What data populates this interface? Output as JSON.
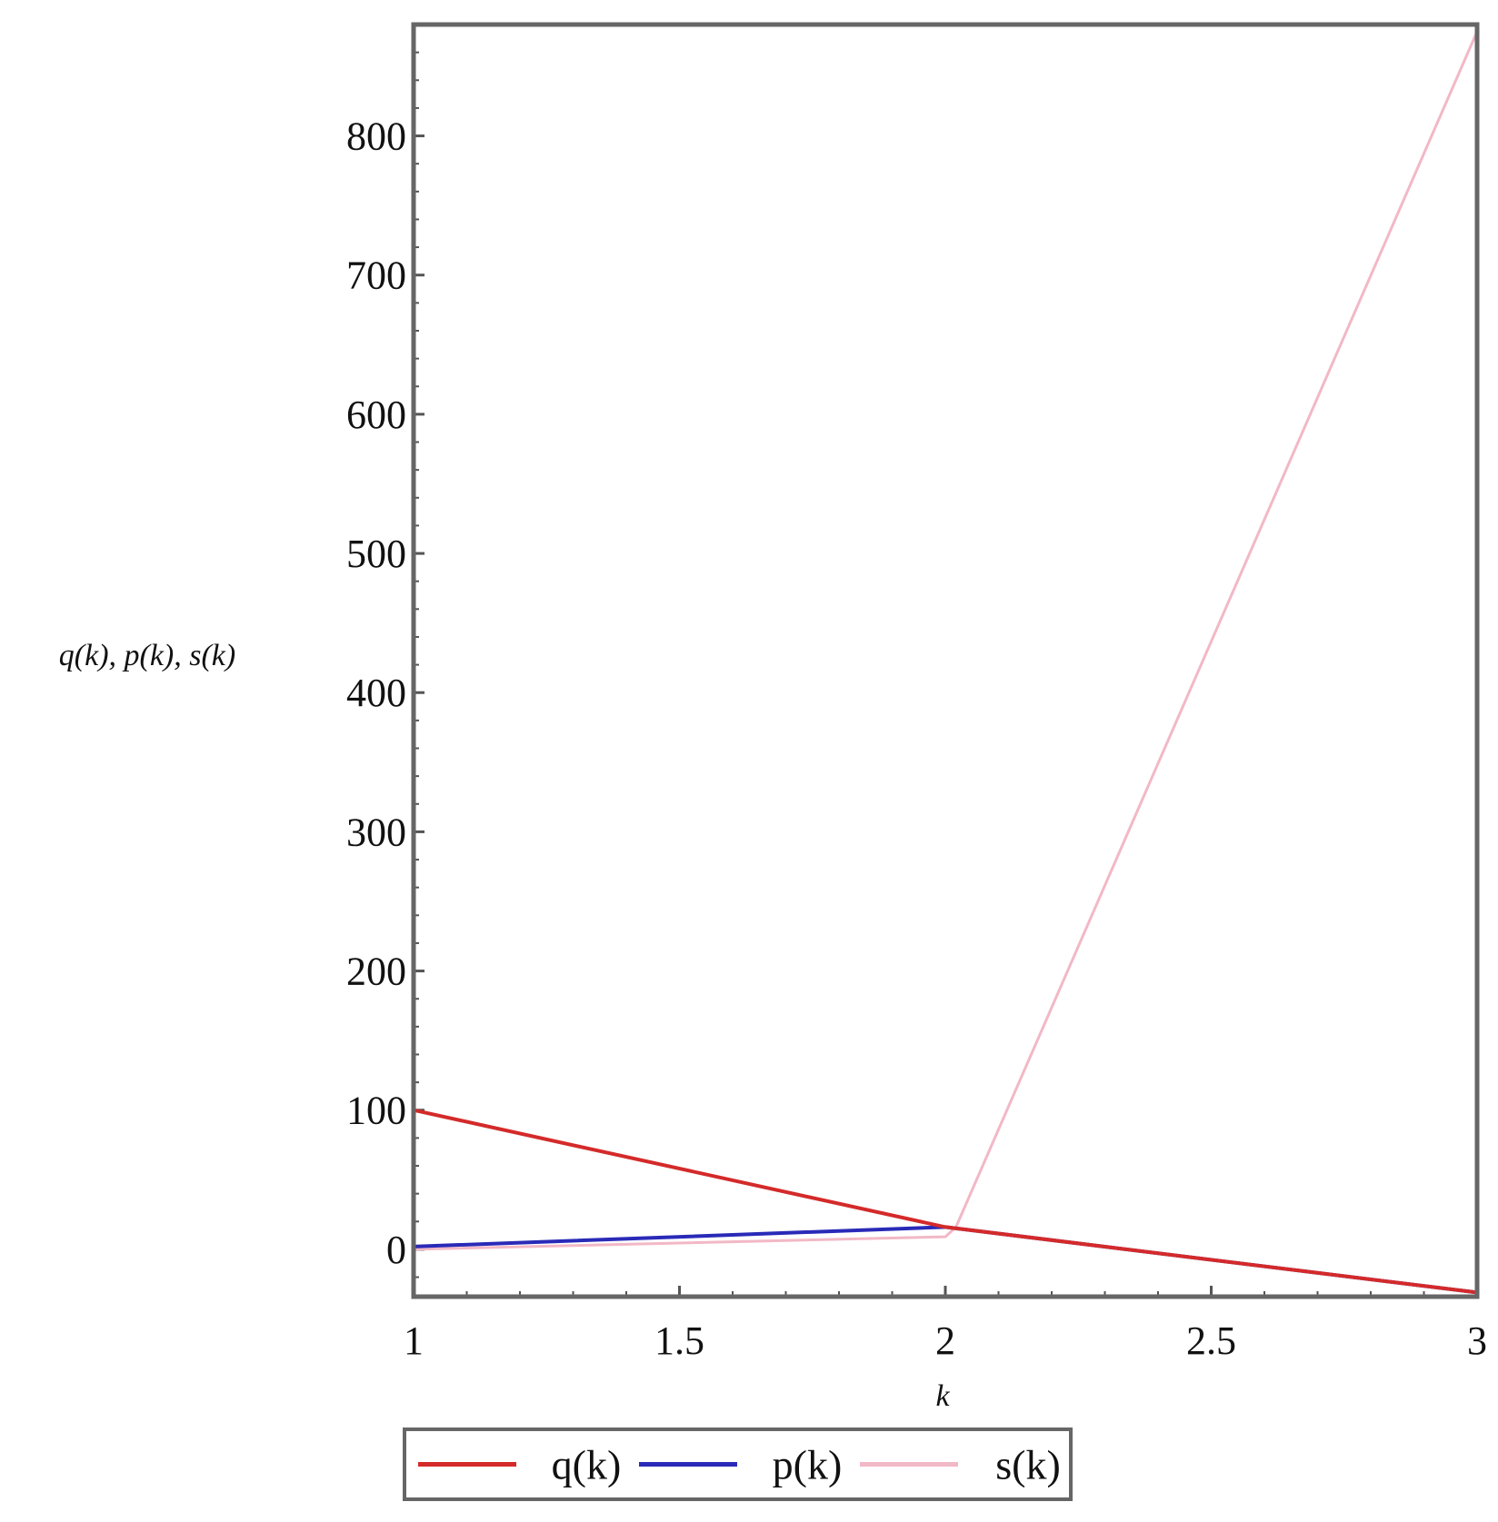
{
  "chart_data": {
    "type": "line",
    "title": "",
    "xlabel": "k",
    "ylabel": "q(k), p(k), s(k)",
    "xlim": [
      1,
      3
    ],
    "ylim": [
      -34,
      880
    ],
    "x_ticks": [
      1,
      1.5,
      2,
      2.5,
      3
    ],
    "x_tick_labels": [
      "1",
      "1.5",
      "2",
      "2.5",
      "3"
    ],
    "y_ticks": [
      0,
      100,
      200,
      300,
      400,
      500,
      600,
      700,
      800
    ],
    "y_tick_labels": [
      "0",
      "100",
      "200",
      "300",
      "400",
      "500",
      "600",
      "700",
      "800"
    ],
    "grid": false,
    "legend_position": "bottom",
    "series": [
      {
        "name": "q(k)",
        "color": "#d42a2a",
        "x": [
          1,
          2,
          3
        ],
        "y": [
          100,
          16,
          -31
        ]
      },
      {
        "name": "p(k)",
        "color": "#2a2ab8",
        "x": [
          1,
          2,
          3
        ],
        "y": [
          2,
          16,
          -31
        ]
      },
      {
        "name": "s(k)",
        "color": "#f2b8c6",
        "x": [
          1,
          2,
          2.02,
          3
        ],
        "y": [
          0,
          9,
          16,
          875
        ]
      }
    ]
  }
}
